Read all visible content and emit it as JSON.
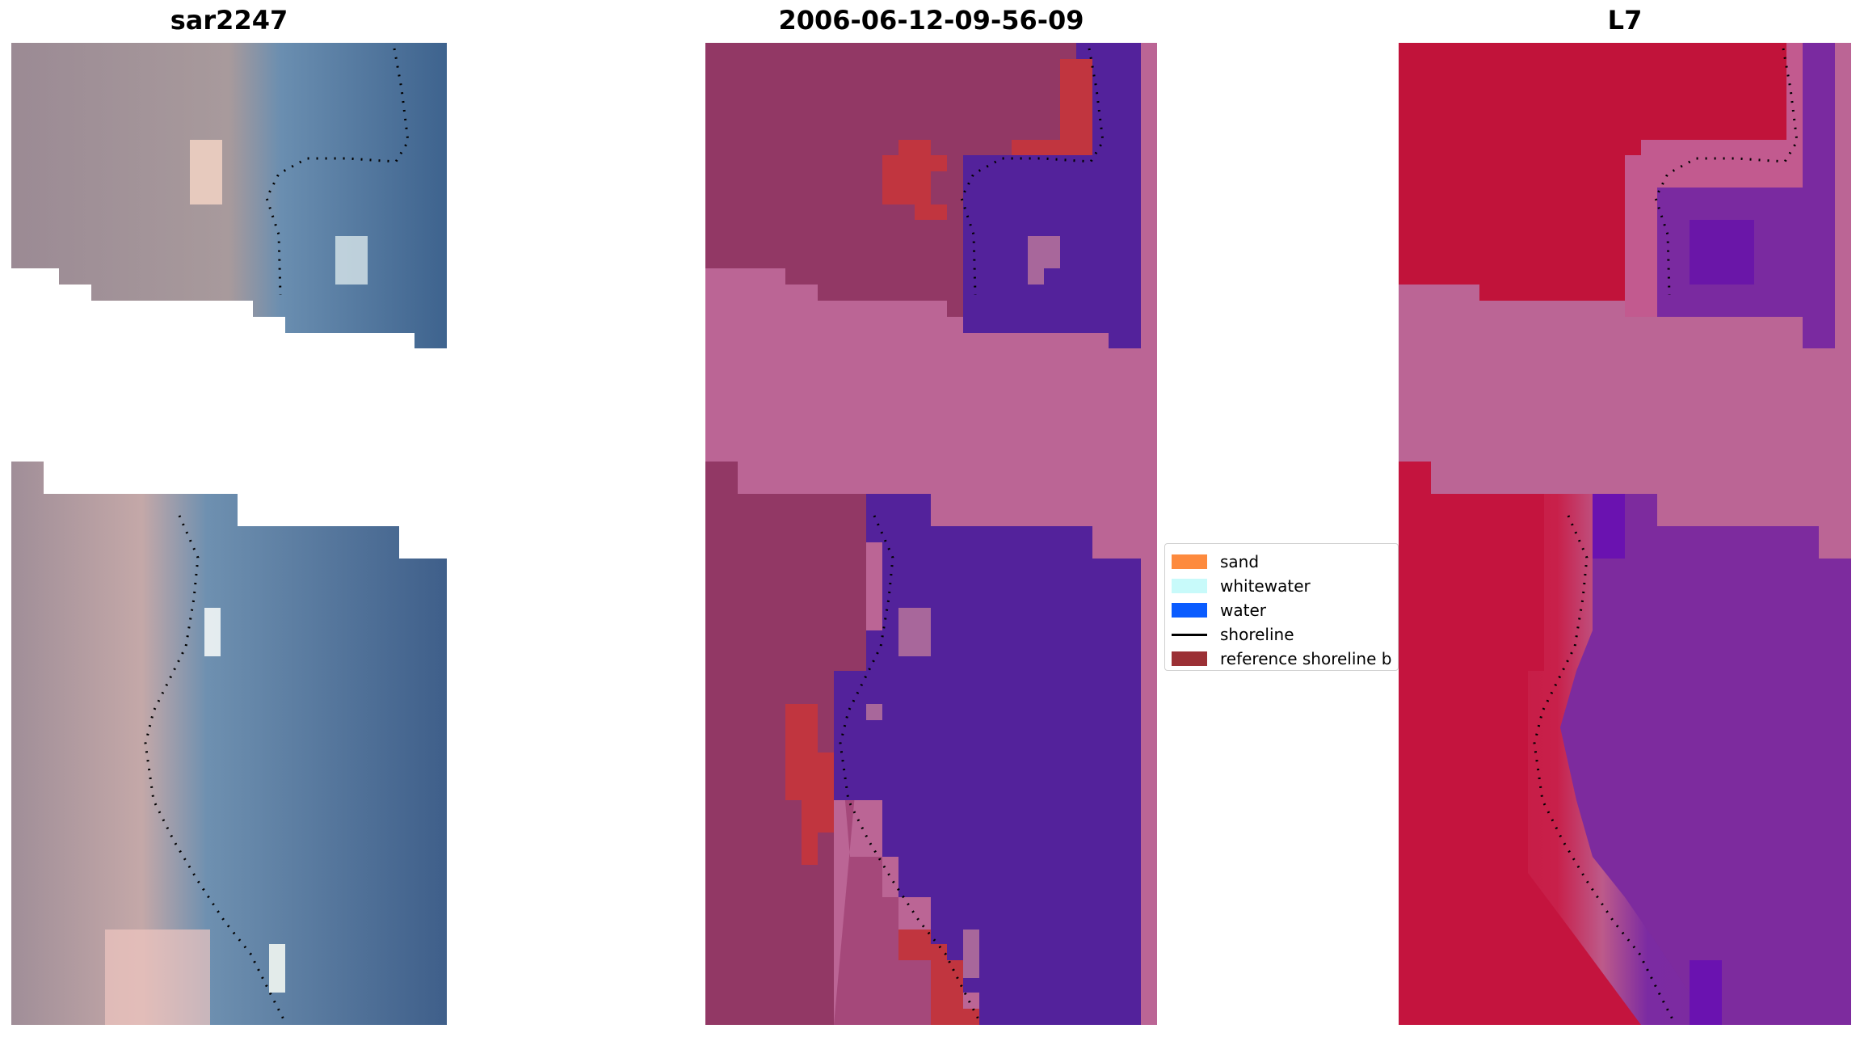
{
  "panels": {
    "left": {
      "title": "sar2247"
    },
    "middle": {
      "title": "2006-06-12-09-56-09"
    },
    "right": {
      "title": "L7"
    }
  },
  "legend": {
    "items": [
      {
        "label": "sand",
        "color": "#fd8a3e",
        "kind": "patch"
      },
      {
        "label": "whitewater",
        "color": "#c8fafa",
        "kind": "patch"
      },
      {
        "label": "water",
        "color": "#0a5cff",
        "kind": "patch"
      },
      {
        "label": "shoreline",
        "color": "#000000",
        "kind": "line"
      },
      {
        "label": "reference shoreline b",
        "color": "#9b3035",
        "kind": "patch"
      }
    ]
  },
  "colors": {
    "nodata_pink": "#bb6595",
    "water_purple": "#53229b",
    "sand_maroon": "#923865",
    "buffer_red": "#c1353f",
    "ndwi_red": "#c21038",
    "ndwi_purple": "#7f2c9a"
  }
}
